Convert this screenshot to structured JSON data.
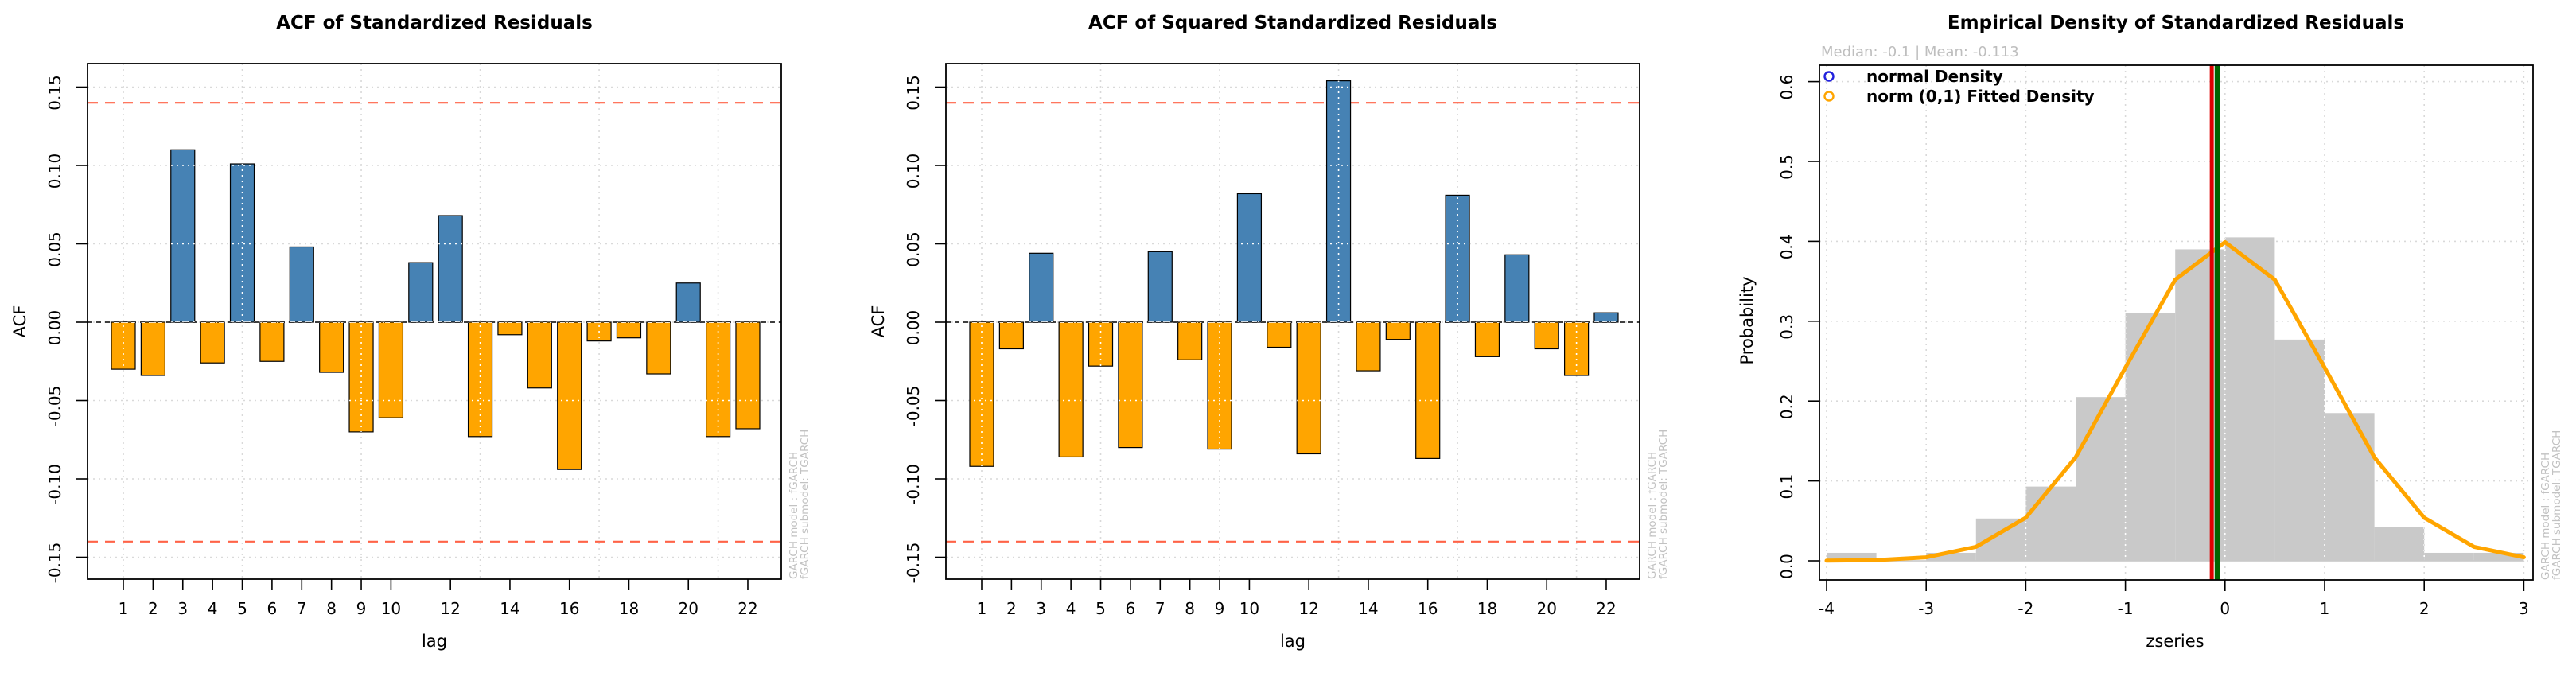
{
  "figure": {
    "background": "#FFFFFF"
  },
  "chart_data": [
    {
      "type": "bar",
      "title": "ACF of Standardized Residuals",
      "xlabel": "lag",
      "ylabel": "ACF",
      "categories": [
        1,
        2,
        3,
        4,
        5,
        6,
        7,
        8,
        9,
        10,
        11,
        12,
        13,
        14,
        15,
        16,
        17,
        18,
        19,
        20,
        21,
        22
      ],
      "values": [
        -0.03,
        -0.034,
        0.11,
        -0.026,
        0.101,
        -0.025,
        0.048,
        -0.032,
        -0.07,
        -0.061,
        0.038,
        0.068,
        -0.073,
        -0.008,
        -0.042,
        -0.094,
        -0.012,
        -0.01,
        -0.033,
        0.025,
        -0.073,
        -0.068
      ],
      "ylim": [
        -0.164,
        0.165
      ],
      "yticks": [
        -0.15,
        -0.1,
        -0.05,
        0.0,
        0.05,
        0.1,
        0.15
      ],
      "ytick_labels": [
        "-0.15",
        "-0.10",
        "-0.05",
        "0.00",
        "0.05",
        "0.10",
        "0.15"
      ],
      "xtick_labels": [
        "1",
        "2",
        "3",
        "4",
        "5",
        "6",
        "7",
        "8",
        "9",
        "10",
        "12",
        "14",
        "16",
        "18",
        "20",
        "22"
      ],
      "xtick_positions": [
        1,
        2,
        3,
        4,
        5,
        6,
        7,
        8,
        9,
        10,
        12,
        14,
        16,
        18,
        20,
        22
      ],
      "x_gridlines": [
        1,
        5,
        9,
        13,
        17,
        21
      ],
      "grid": "dotted",
      "legend_position": "none",
      "conf_band": 0.14,
      "colors": {
        "positive": "#4682B4",
        "negative": "#FFA500",
        "conf_line": "#FF6347",
        "grid": "#D9D9D9",
        "zero_line": "#000000"
      },
      "stamp_line1": "GARCH model :  fGARCH",
      "stamp_line2": "fGARCH submodel: TGARCH"
    },
    {
      "type": "bar",
      "title": "ACF of Squared Standardized Residuals",
      "xlabel": "lag",
      "ylabel": "ACF",
      "categories": [
        1,
        2,
        3,
        4,
        5,
        6,
        7,
        8,
        9,
        10,
        11,
        12,
        13,
        14,
        15,
        16,
        17,
        18,
        19,
        20,
        21,
        22
      ],
      "values": [
        -0.092,
        -0.017,
        0.044,
        -0.086,
        -0.028,
        -0.08,
        0.045,
        -0.024,
        -0.081,
        0.082,
        -0.016,
        -0.084,
        0.154,
        -0.031,
        -0.011,
        -0.087,
        0.081,
        -0.022,
        0.043,
        -0.017,
        -0.034,
        0.006
      ],
      "ylim": [
        -0.164,
        0.165
      ],
      "yticks": [
        -0.15,
        -0.1,
        -0.05,
        0.0,
        0.05,
        0.1,
        0.15
      ],
      "ytick_labels": [
        "-0.15",
        "-0.10",
        "-0.05",
        "0.00",
        "0.05",
        "0.10",
        "0.15"
      ],
      "xtick_labels": [
        "1",
        "2",
        "3",
        "4",
        "5",
        "6",
        "7",
        "8",
        "9",
        "10",
        "12",
        "14",
        "16",
        "18",
        "20",
        "22"
      ],
      "xtick_positions": [
        1,
        2,
        3,
        4,
        5,
        6,
        7,
        8,
        9,
        10,
        12,
        14,
        16,
        18,
        20,
        22
      ],
      "x_gridlines": [
        1,
        5,
        9,
        13,
        17,
        21
      ],
      "grid": "dotted",
      "legend_position": "none",
      "conf_band": 0.14,
      "colors": {
        "positive": "#4682B4",
        "negative": "#FFA500",
        "conf_line": "#FF6347",
        "grid": "#D9D9D9",
        "zero_line": "#000000"
      },
      "stamp_line1": "GARCH model :  fGARCH",
      "stamp_line2": "fGARCH submodel: TGARCH"
    },
    {
      "type": "histogram",
      "title": "Empirical Density of Standardized Residuals",
      "xlabel": "zseries",
      "ylabel": "Probability",
      "annotation": "Median: -0.1 | Mean: -0.113",
      "xlim": [
        -4,
        3
      ],
      "ylim": [
        -0.024,
        0.62
      ],
      "yticks": [
        0.0,
        0.1,
        0.2,
        0.3,
        0.4,
        0.5,
        0.6
      ],
      "ytick_labels": [
        "0.0",
        "0.1",
        "0.2",
        "0.3",
        "0.4",
        "0.5",
        "0.6"
      ],
      "xticks": [
        -4,
        -3,
        -2,
        -1,
        0,
        1,
        2,
        3
      ],
      "xtick_labels": [
        "-4",
        "-3",
        "-2",
        "-1",
        "0",
        "1",
        "2",
        "3"
      ],
      "grid": "dotted",
      "bins_start": -4,
      "bin_width": 0.5,
      "bar_values": [
        0.01,
        0.0,
        0.01,
        0.053,
        0.093,
        0.205,
        0.31,
        0.39,
        0.405,
        0.277,
        0.185,
        0.042,
        0.01,
        0.01
      ],
      "curve_x": [
        -4,
        -3.5,
        -3,
        -2.5,
        -2,
        -1.5,
        -1,
        -0.5,
        0,
        0.5,
        1,
        1.5,
        2,
        2.5,
        3
      ],
      "curve_y": [
        0.0002,
        0.0009,
        0.0044,
        0.0175,
        0.054,
        0.1295,
        0.242,
        0.352,
        0.399,
        0.352,
        0.242,
        0.1295,
        0.054,
        0.0175,
        0.0044
      ],
      "mean_line": {
        "x": -0.113,
        "color": "#DF0000"
      },
      "median_line": {
        "x": -0.1,
        "color": "#006400"
      },
      "legend": [
        {
          "label": "normal Density",
          "color": "#2222DD"
        },
        {
          "label": "norm (0,1) Fitted Density",
          "color": "#FFA500"
        }
      ],
      "legend_position": "top-left",
      "colors": {
        "bars": "#C9C9C9",
        "curve": "#FFA500",
        "grid": "#D9D9D9",
        "baseline": "#D3D3D3"
      },
      "stamp_line1": "GARCH model :  fGARCH",
      "stamp_line2": "fGARCH submodel: TGARCH"
    }
  ]
}
